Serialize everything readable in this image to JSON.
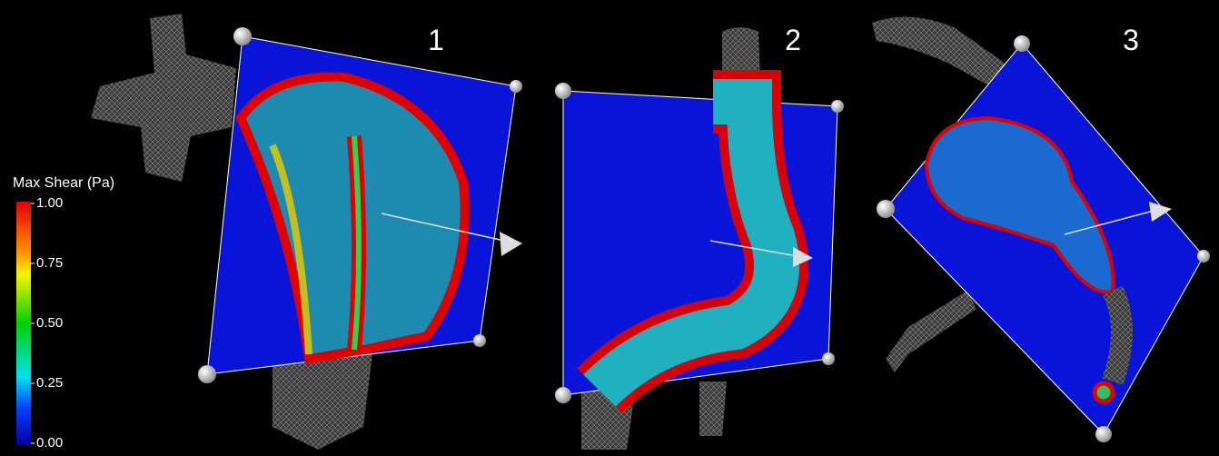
{
  "panels": [
    {
      "label": "1"
    },
    {
      "label": "2"
    },
    {
      "label": "3"
    }
  ],
  "colorbar": {
    "title": "Max Shear (Pa)",
    "range": [
      0,
      1
    ],
    "ticks": [
      {
        "value": 1,
        "label": "1.00"
      },
      {
        "value": 0.75,
        "label": "0.75"
      },
      {
        "value": 0.5,
        "label": "0.50"
      },
      {
        "value": 0.25,
        "label": "0.25"
      },
      {
        "value": 0,
        "label": "0.00"
      }
    ]
  }
}
